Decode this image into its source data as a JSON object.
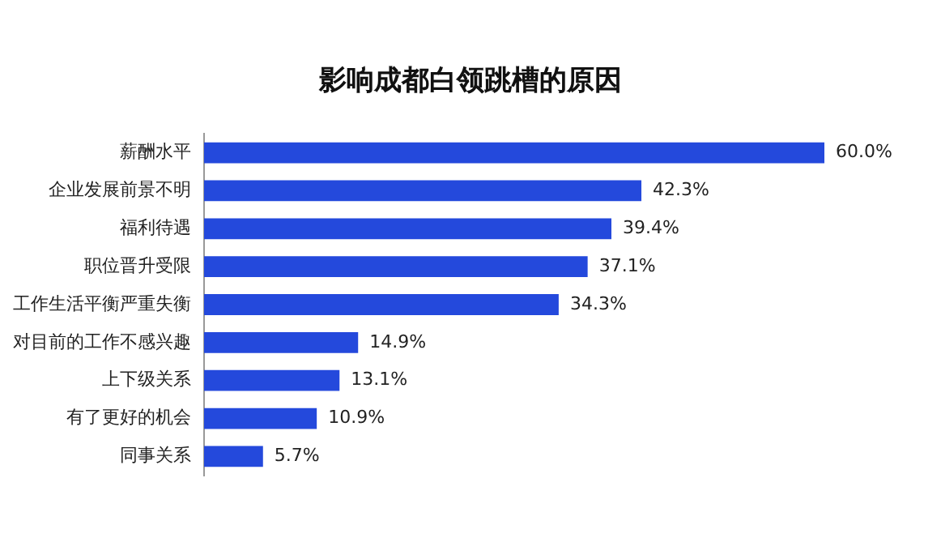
{
  "chart_data": {
    "type": "bar",
    "orientation": "horizontal",
    "title": "影响成都白领跳槽的原因",
    "categories": [
      "薪酬水平",
      "企业发展前景不明",
      "福利待遇",
      "职位晋升受限",
      "工作生活平衡严重失衡",
      "对目前的工作不感兴趣",
      "上下级关系",
      "有了更好的机会",
      "同事关系"
    ],
    "values": [
      60.0,
      42.3,
      39.4,
      37.1,
      34.3,
      14.9,
      13.1,
      10.9,
      5.7
    ],
    "value_labels": [
      "60.0%",
      "42.3%",
      "39.4%",
      "37.1%",
      "34.3%",
      "14.9%",
      "13.1%",
      "10.9%",
      "5.7%"
    ],
    "color": "#2449dc",
    "grid": false,
    "legend": false
  }
}
